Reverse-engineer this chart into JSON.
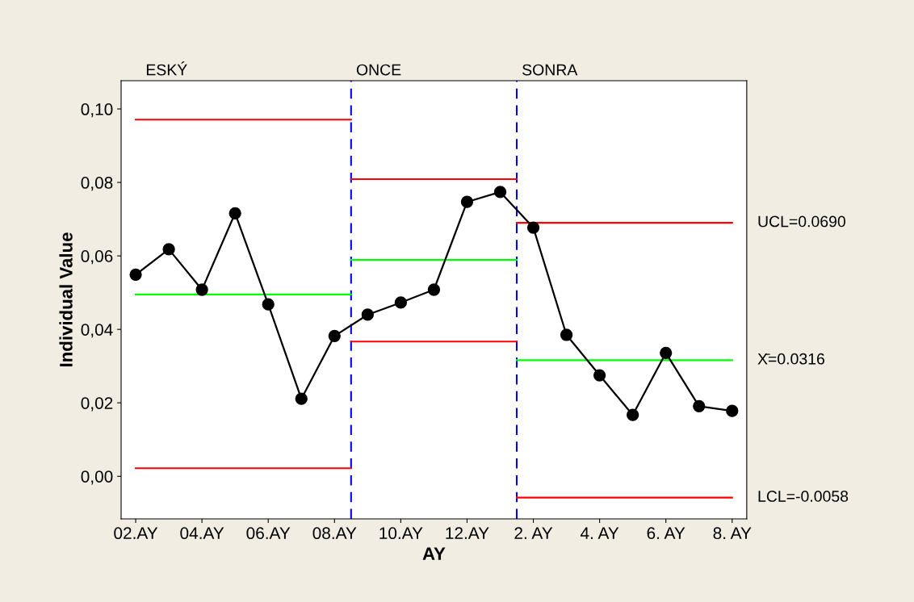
{
  "chart_data": {
    "type": "line",
    "xlabel": "AY",
    "ylabel": "Individual Value",
    "categories": [
      "02.AY",
      null,
      "04.AY",
      null,
      "06.AY",
      null,
      "08.AY",
      null,
      "10.AY",
      null,
      "12.AY",
      null,
      "2. AY",
      null,
      "4. AY",
      null,
      "6. AY",
      null,
      "8. AY"
    ],
    "series": [
      {
        "color": "#000000",
        "marker": "circle",
        "values": [
          0.0549,
          0.0618,
          0.0508,
          0.0716,
          0.0468,
          0.0211,
          0.0382,
          0.044,
          0.0473,
          0.0508,
          0.0747,
          0.0774,
          0.0677,
          0.0385,
          0.0275,
          0.0167,
          0.0336,
          0.0191,
          0.0178
        ]
      },
      {
        "type": "step",
        "color": "#ff0000",
        "marker": "none",
        "values": [
          0.0971,
          0.0971,
          0.0971,
          0.0971,
          0.0971,
          0.0971,
          0.0971,
          0.0809,
          0.0809,
          0.0809,
          0.0809,
          0.0809,
          0.069,
          0.069,
          0.069,
          0.069,
          0.069,
          0.069,
          0.069
        ]
      },
      {
        "type": "step",
        "color": "#00ff00",
        "marker": "none",
        "values": [
          0.0495,
          0.0495,
          0.0495,
          0.0495,
          0.0495,
          0.0495,
          0.0495,
          0.0589,
          0.0589,
          0.0589,
          0.0589,
          0.0589,
          0.0316,
          0.0316,
          0.0316,
          0.0316,
          0.0316,
          0.0316,
          0.0316
        ]
      },
      {
        "type": "step",
        "color": "#ff0000",
        "marker": "none",
        "values": [
          0.0022,
          0.0022,
          0.0022,
          0.0022,
          0.0022,
          0.0022,
          0.0022,
          0.0367,
          0.0367,
          0.0367,
          0.0367,
          0.0367,
          -0.0058,
          -0.0058,
          -0.0058,
          -0.0058,
          -0.0058,
          -0.0058,
          -0.0058
        ]
      }
    ],
    "ylim": [
      -0.0116,
      0.1077
    ],
    "yticks": [
      {
        "value": 0.0,
        "label": "0,00"
      },
      {
        "value": 0.02,
        "label": "0,02"
      },
      {
        "value": 0.04,
        "label": "0,04"
      },
      {
        "value": 0.06,
        "label": "0,06"
      },
      {
        "value": 0.08,
        "label": "0,08"
      },
      {
        "value": 0.1,
        "label": "0,10"
      }
    ],
    "annotations": [
      "ESKÝ",
      "ONCE",
      "SONRA",
      "UCL=0.0690",
      "X̄=0.0316",
      "LCL=-0.0058"
    ],
    "grid": false,
    "legend": false
  }
}
